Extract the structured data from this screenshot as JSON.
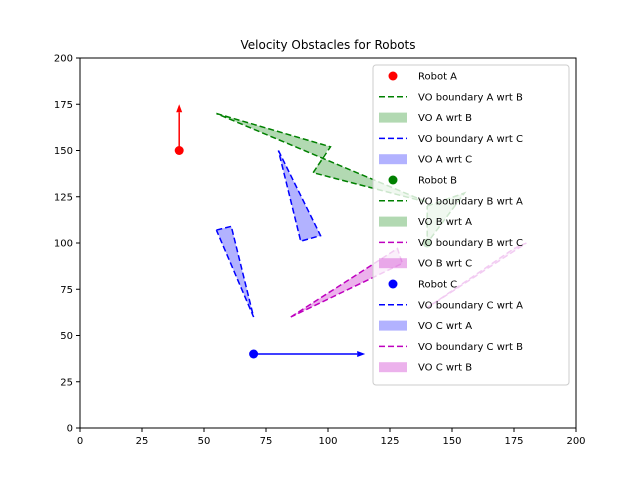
{
  "chart_data": {
    "type": "scatter",
    "title": "Velocity Obstacles for Robots",
    "xlabel": "",
    "ylabel": "",
    "xlim": [
      0,
      200
    ],
    "ylim": [
      0,
      200
    ],
    "xticks": [
      0,
      25,
      50,
      75,
      100,
      125,
      150,
      175,
      200
    ],
    "yticks": [
      0,
      25,
      50,
      75,
      100,
      125,
      150,
      175,
      200
    ],
    "grid": false,
    "legend_position": "top-right",
    "robots": [
      {
        "name": "Robot A",
        "x": 40,
        "y": 150,
        "color": "#ff0000",
        "velocity": [
          0,
          25
        ]
      },
      {
        "name": "Robot B",
        "x": 140,
        "y": 100,
        "color": "#008000",
        "velocity": [
          0,
          0
        ]
      },
      {
        "name": "Robot C",
        "x": 70,
        "y": 40,
        "color": "#0000ff",
        "velocity": [
          45,
          0
        ]
      }
    ],
    "obstacles": [
      {
        "boundary_name": "VO boundary A wrt B",
        "region_name": "VO A wrt B",
        "color": "#008000",
        "fill": "#008000",
        "polygon": [
          [
            55,
            170
          ],
          [
            101,
            152
          ],
          [
            98,
            147
          ],
          [
            94,
            138
          ],
          [
            140,
            122
          ]
        ],
        "boundary": [
          [
            55,
            170
          ],
          [
            101,
            152
          ],
          [
            94,
            138
          ],
          [
            140,
            122
          ],
          [
            55,
            170
          ]
        ]
      },
      {
        "boundary_name": "VO boundary A wrt C",
        "region_name": "VO A wrt C",
        "color": "#0000ff",
        "fill": "#0000ff",
        "polygon": [
          [
            80,
            150
          ],
          [
            97,
            104
          ],
          [
            89,
            101
          ]
        ],
        "boundary": [
          [
            80,
            150
          ],
          [
            97,
            104
          ],
          [
            89,
            101
          ],
          [
            80,
            150
          ]
        ]
      },
      {
        "boundary_name": "VO boundary B wrt A",
        "region_name": "VO B wrt A",
        "color": "#008000",
        "fill": "#008000",
        "polygon": [
          [
            140,
            120
          ],
          [
            155,
            127
          ],
          [
            140,
            100
          ]
        ],
        "boundary": [
          [
            140,
            120
          ],
          [
            155,
            127
          ],
          [
            140,
            100
          ],
          [
            140,
            120
          ]
        ]
      },
      {
        "boundary_name": "VO boundary B wrt C",
        "region_name": "VO B wrt C",
        "color": "#bf00bf",
        "fill": "#bf00bf",
        "polygon": [
          [
            85,
            60
          ],
          [
            128,
            97
          ],
          [
            130,
            89
          ]
        ],
        "boundary": [
          [
            85,
            60
          ],
          [
            128,
            97
          ],
          [
            130,
            89
          ],
          [
            85,
            60
          ]
        ]
      },
      {
        "boundary_name": "VO boundary C wrt A",
        "region_name": "VO C wrt A",
        "color": "#0000ff",
        "fill": "#0000ff",
        "polygon": [
          [
            55,
            107
          ],
          [
            61,
            109
          ],
          [
            70,
            60
          ]
        ],
        "boundary": [
          [
            55,
            107
          ],
          [
            61,
            109
          ],
          [
            70,
            60
          ],
          [
            55,
            107
          ]
        ]
      },
      {
        "boundary_name": "VO boundary C wrt B",
        "region_name": "VO C wrt B",
        "color": "#bf00bf",
        "fill": "#bf00bf",
        "polygon": [
          [
            140,
            65
          ],
          [
            180,
            100
          ],
          [
            175,
            97
          ]
        ],
        "boundary": [
          [
            140,
            65
          ],
          [
            180,
            100
          ],
          [
            175,
            97
          ],
          [
            140,
            65
          ]
        ]
      }
    ],
    "legend": [
      {
        "label": "Robot A",
        "kind": "marker",
        "color": "#ff0000"
      },
      {
        "label": "VO boundary A wrt B",
        "kind": "dash",
        "color": "#008000"
      },
      {
        "label": "VO A wrt B",
        "kind": "patch",
        "color": "#008000"
      },
      {
        "label": "VO boundary A wrt C",
        "kind": "dash",
        "color": "#0000ff"
      },
      {
        "label": "VO A wrt C",
        "kind": "patch",
        "color": "#0000ff"
      },
      {
        "label": "Robot B",
        "kind": "marker",
        "color": "#008000"
      },
      {
        "label": "VO boundary B wrt A",
        "kind": "dash",
        "color": "#008000"
      },
      {
        "label": "VO B wrt A",
        "kind": "patch",
        "color": "#008000"
      },
      {
        "label": "VO boundary B wrt C",
        "kind": "dash",
        "color": "#bf00bf"
      },
      {
        "label": "VO B wrt C",
        "kind": "patch",
        "color": "#bf00bf"
      },
      {
        "label": "Robot C",
        "kind": "marker",
        "color": "#0000ff"
      },
      {
        "label": "VO boundary C wrt A",
        "kind": "dash",
        "color": "#0000ff"
      },
      {
        "label": "VO C wrt A",
        "kind": "patch",
        "color": "#0000ff"
      },
      {
        "label": "VO boundary C wrt B",
        "kind": "dash",
        "color": "#bf00bf"
      },
      {
        "label": "VO C wrt B",
        "kind": "patch",
        "color": "#bf00bf"
      }
    ]
  }
}
